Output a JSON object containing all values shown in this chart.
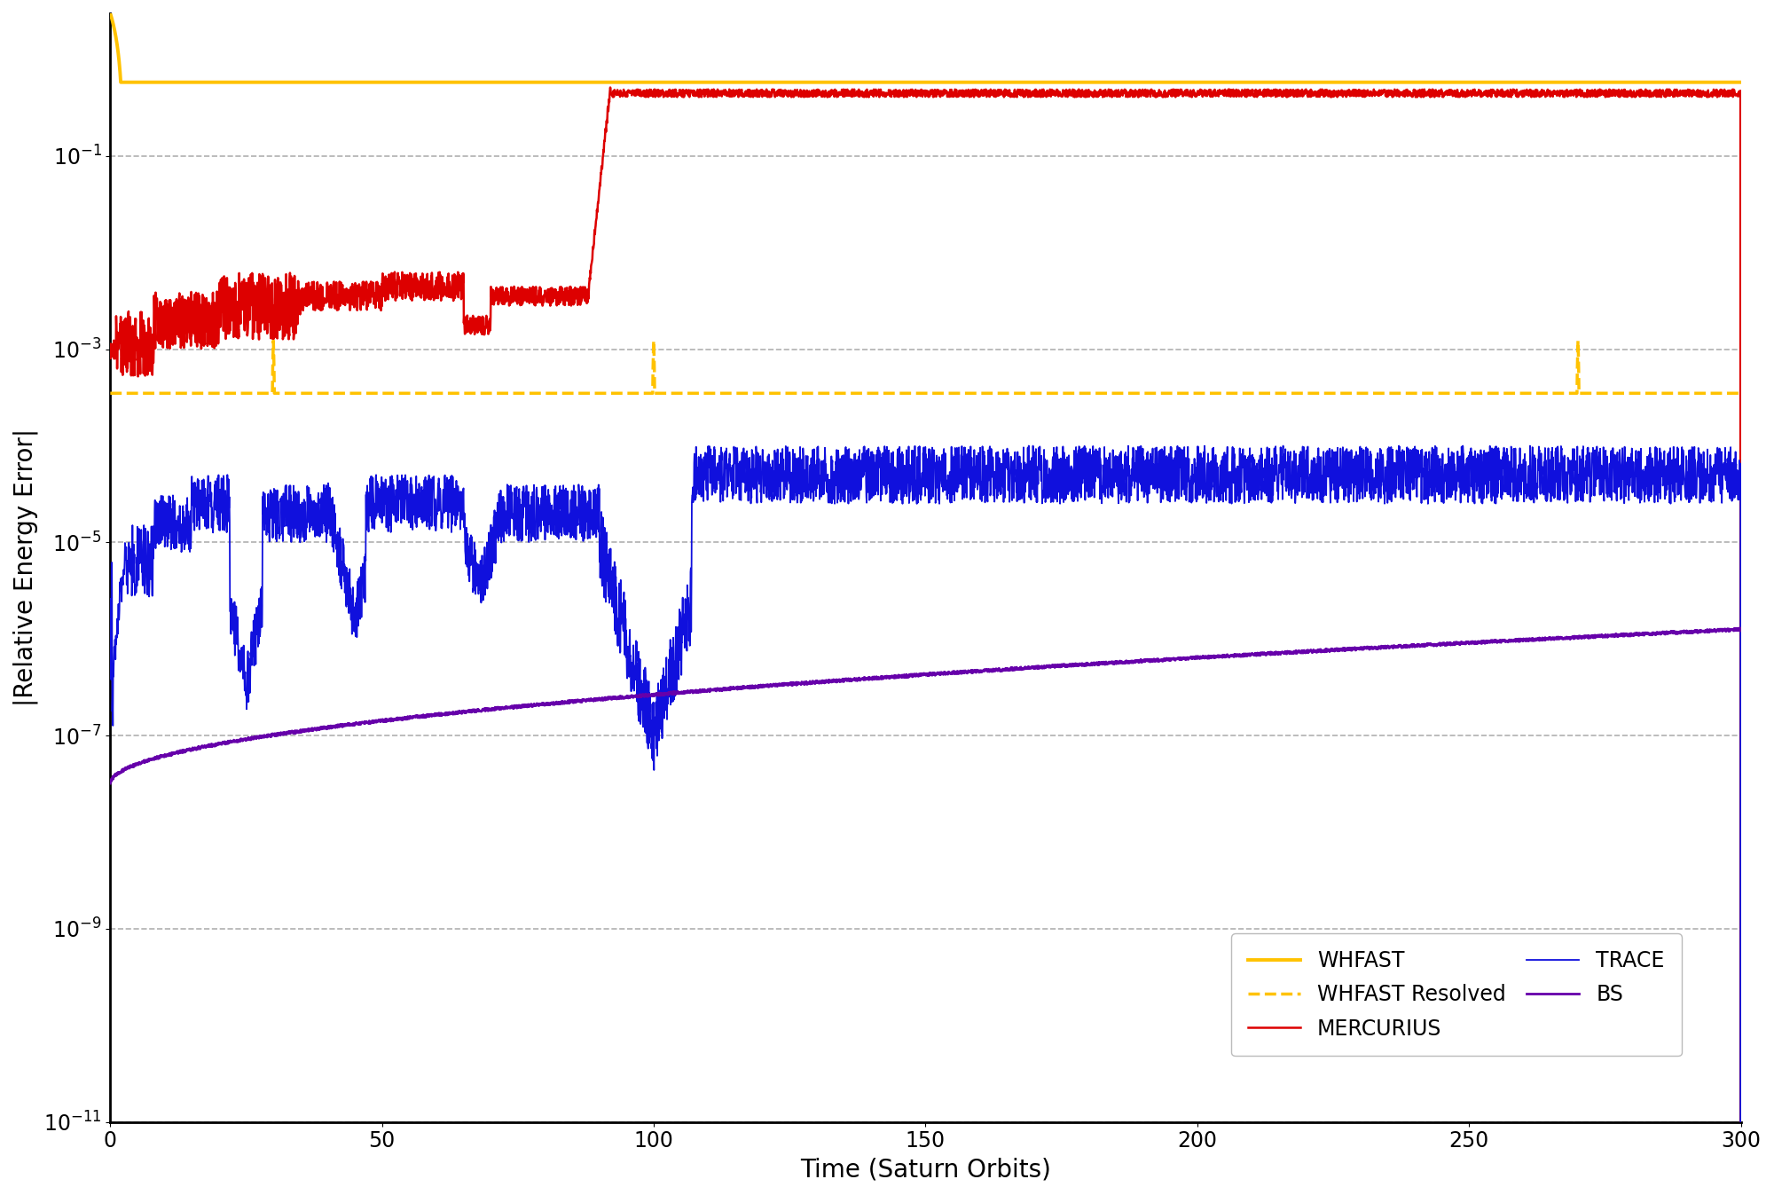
{
  "title": "",
  "xlabel": "Time (Saturn Orbits)",
  "ylabel": "|Relative Energy Error|",
  "xlim": [
    0,
    300
  ],
  "ymin": 1e-11,
  "ymax": 3.0,
  "x_ticks": [
    0,
    50,
    100,
    150,
    200,
    250,
    300
  ],
  "background_color": "#ffffff",
  "grid_color": "#b0b0b0",
  "series": {
    "WHFAST": {
      "color": "#FFC200",
      "linestyle": "solid",
      "linewidth": 2.8,
      "level": 0.58
    },
    "WHFAST_Resolved": {
      "color": "#FFC200",
      "linestyle": "dashed",
      "linewidth": 2.5,
      "level": 0.00035
    },
    "MERCURIUS": {
      "color": "#dd0000",
      "linestyle": "solid",
      "linewidth": 1.8
    },
    "TRACE": {
      "color": "#1010dd",
      "linestyle": "solid",
      "linewidth": 1.3
    },
    "BS": {
      "color": "#6600aa",
      "linestyle": "solid",
      "linewidth": 2.0
    }
  },
  "legend_fontsize": 17,
  "tick_fontsize": 17,
  "label_fontsize": 20
}
